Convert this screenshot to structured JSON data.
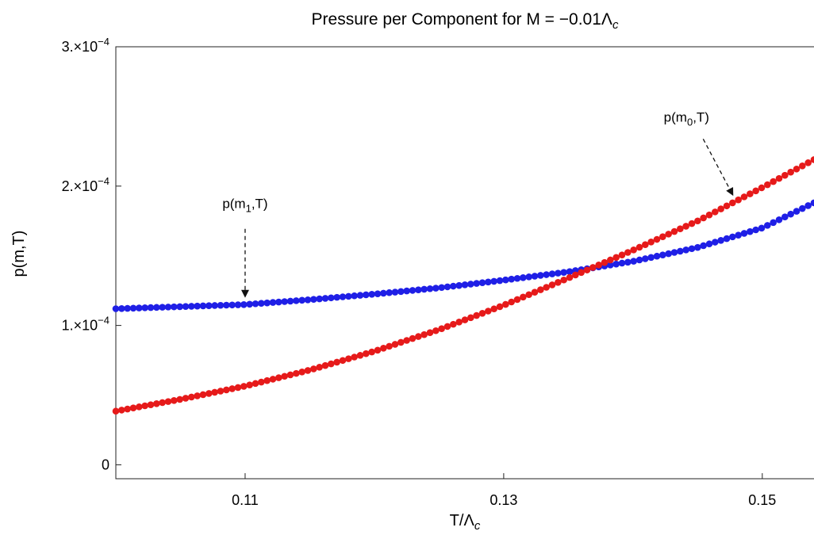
{
  "chart_data": {
    "type": "scatter",
    "title": {
      "main": "Pressure per Component for M = −0.01Λ",
      "sub": "c"
    },
    "xlabel": {
      "main": "T/Λ",
      "sub": "c"
    },
    "ylabel": "p(m,T)",
    "xlim": [
      0.1,
      0.154
    ],
    "ylim": [
      -1e-05,
      0.0003
    ],
    "x_ticks": [
      {
        "value": 0.11,
        "label": "0.11"
      },
      {
        "value": 0.13,
        "label": "0.13"
      },
      {
        "value": 0.15,
        "label": "0.15"
      }
    ],
    "y_ticks": [
      {
        "value": 0,
        "label": "0",
        "exp": ""
      },
      {
        "value": 0.0001,
        "label": "1.×10",
        "exp": "−4"
      },
      {
        "value": 0.0002,
        "label": "2.×10",
        "exp": "−4"
      },
      {
        "value": 0.0003,
        "label": "3.×10",
        "exp": "−4"
      }
    ],
    "grid": false,
    "series": [
      {
        "color": "#1f1fe6",
        "x": [
          0.1,
          0.105,
          0.11,
          0.115,
          0.12,
          0.125,
          0.13,
          0.135,
          0.14,
          0.145,
          0.15,
          0.154
        ],
        "y": [
          0.000112,
          0.0001135,
          0.000115,
          0.0001185,
          0.0001225,
          0.000127,
          0.0001325,
          0.0001385,
          0.000146,
          0.000156,
          0.00017,
          0.000188
        ]
      },
      {
        "color": "#e61a1a",
        "x": [
          0.1,
          0.105,
          0.11,
          0.115,
          0.12,
          0.125,
          0.13,
          0.135,
          0.14,
          0.145,
          0.15,
          0.154
        ],
        "y": [
          3.85e-05,
          4.7e-05,
          5.65e-05,
          6.8e-05,
          8.15e-05,
          9.7e-05,
          0.0001145,
          0.000134,
          0.000154,
          0.000175,
          0.000199,
          0.000219
        ]
      }
    ],
    "annotations": [
      {
        "text_pre": "p(m",
        "sub": "1",
        "text_post": ",T)",
        "x": 0.11,
        "y": 0.000121
      },
      {
        "text_pre": "p(m",
        "sub": "0",
        "text_post": ",T)",
        "x": 0.1477,
        "y": 0.000194
      }
    ]
  }
}
